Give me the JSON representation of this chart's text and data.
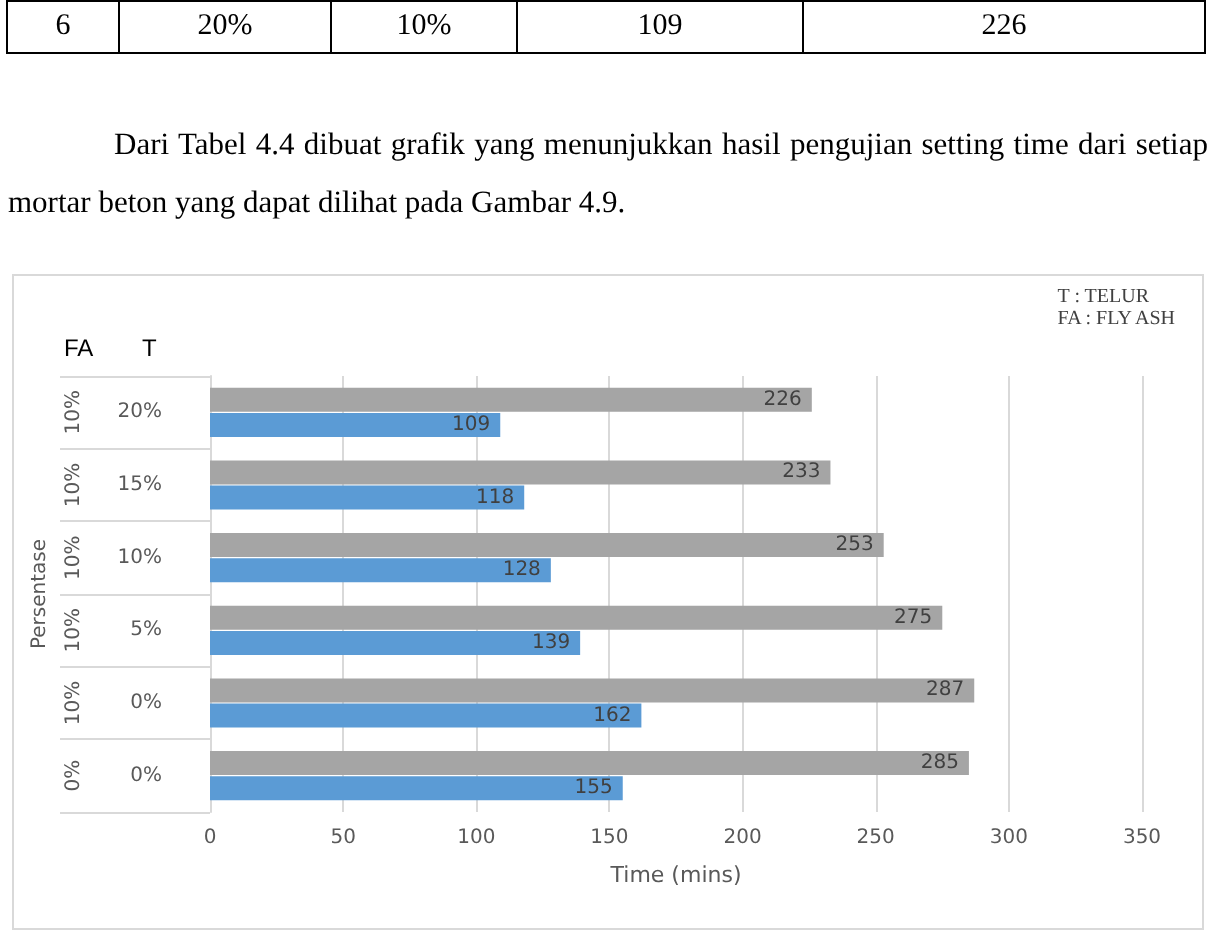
{
  "chart_data": {
    "type": "bar",
    "orientation": "horizontal",
    "title": "Dari Tabel 4.4 dibuat grafik yang menunjukkan hasil pengujian setting time dari setiap mortar beton yang dapat dilihat pada Gambar 4.9.",
    "xlabel": "Time (mins)",
    "ylabel": "Persentase",
    "categories": [
      "20%",
      "15%",
      "10%",
      "5%",
      "0%",
      "0%"
    ],
    "series": [
      {
        "color": "#a5a5a5",
        "values": [
          226,
          233,
          253,
          275,
          287,
          285
        ]
      },
      {
        "color": "#5b9bd5",
        "values": [
          109,
          118,
          128,
          139,
          162,
          155
        ]
      }
    ],
    "xlim": [
      0,
      350
    ],
    "xticks": [
      0,
      50,
      100,
      150,
      200,
      250,
      300,
      350
    ],
    "grid": "x",
    "data_labels": true,
    "annotations": [
      "6",
      "20%",
      "10%",
      "109",
      "226",
      "FA",
      "T",
      "T : TELUR",
      "FA : FLY ASH",
      "10%",
      "10%",
      "10%",
      "10%",
      "10%",
      "0%"
    ]
  }
}
